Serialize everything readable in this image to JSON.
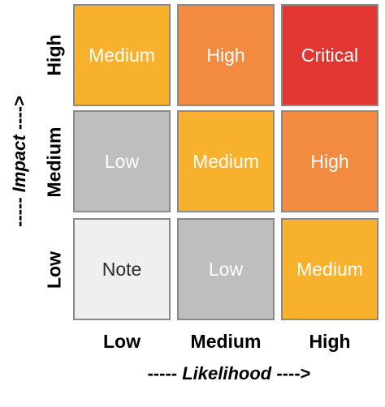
{
  "matrix": {
    "rows": [
      {
        "label": "High",
        "cells": [
          {
            "label": "Medium",
            "color": "#F7B12D"
          },
          {
            "label": "High",
            "color": "#F28B3F"
          },
          {
            "label": "Critical",
            "color": "#E23632"
          }
        ]
      },
      {
        "label": "Medium",
        "cells": [
          {
            "label": "Low",
            "color": "#BEBEBE"
          },
          {
            "label": "Medium",
            "color": "#F7B12D"
          },
          {
            "label": "High",
            "color": "#F28B3F"
          }
        ]
      },
      {
        "label": "Low",
        "cells": [
          {
            "label": "Note",
            "color": "#EFEFEF"
          },
          {
            "label": "Low",
            "color": "#BEBEBE"
          },
          {
            "label": "Medium",
            "color": "#F7B12D"
          }
        ]
      }
    ],
    "columns": [
      {
        "label": "Low"
      },
      {
        "label": "Medium"
      },
      {
        "label": "High"
      }
    ]
  },
  "axes": {
    "x": {
      "dashes": "-----",
      "title": "Likelihood",
      "arrow": "---->"
    },
    "y": {
      "dashes": "-----",
      "title": "Impact",
      "arrow": "---->"
    }
  }
}
